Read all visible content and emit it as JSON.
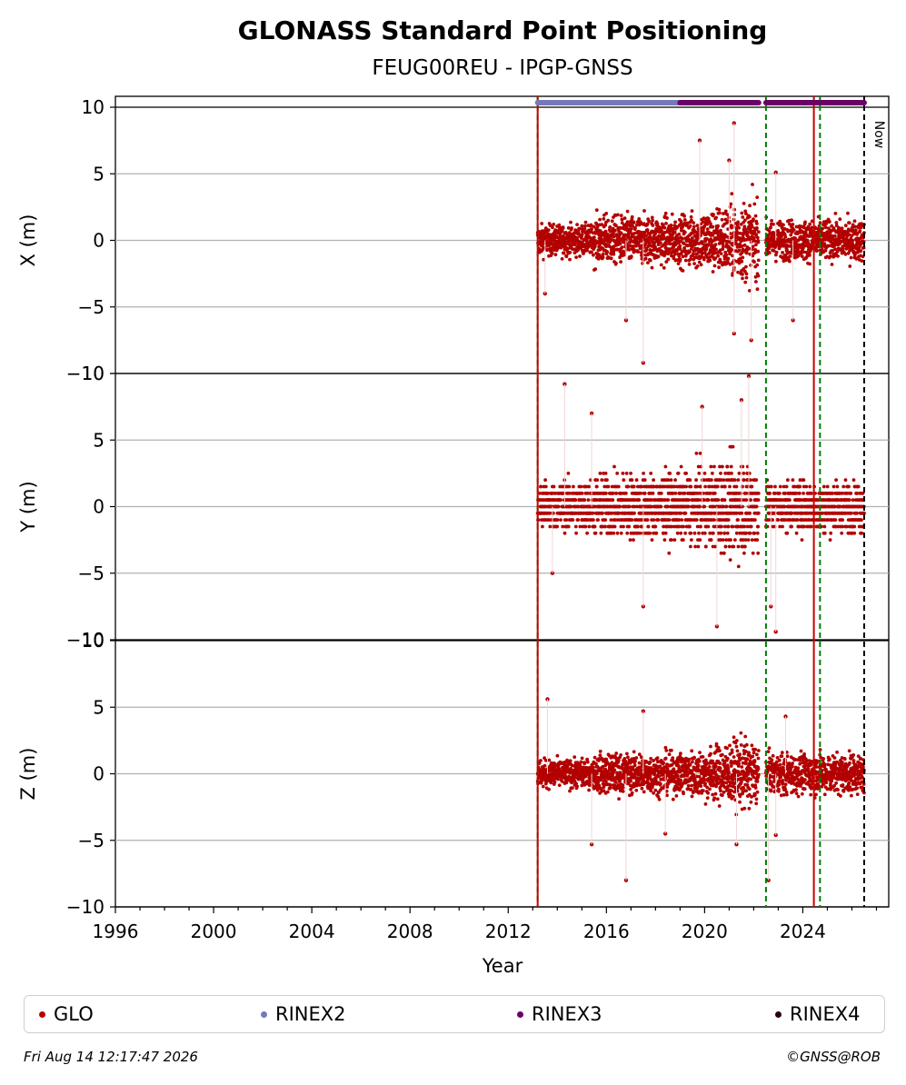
{
  "chart_data": {
    "type": "scatter",
    "title": "GLONASS Standard Point Positioning",
    "subtitle": "FEUG00REU - IPGP-GNSS",
    "xlabel": "Year",
    "xlim": [
      1996.0,
      2027.5
    ],
    "x_ticks": [
      1996,
      2000,
      2004,
      2008,
      2012,
      2016,
      2020,
      2024
    ],
    "grid": "horizontal",
    "panels": [
      {
        "ylabel": "X (m)",
        "ylim": [
          -10,
          10
        ],
        "yticks": [
          -10,
          -5,
          0,
          5,
          10
        ],
        "spread_early": 1.0,
        "spread_mid": 1.6,
        "spread_peak": 2.6,
        "spread_late": 1.3,
        "outliers": [
          [
            2013.5,
            -4.0
          ],
          [
            2016.8,
            -6.0
          ],
          [
            2017.5,
            -9.2
          ],
          [
            2019.8,
            7.5
          ],
          [
            2021.0,
            6.0
          ],
          [
            2021.2,
            8.8
          ],
          [
            2022.9,
            5.1
          ],
          [
            2023.6,
            -6.0
          ],
          [
            2021.9,
            -7.5
          ],
          [
            2021.2,
            -7.0
          ]
        ]
      },
      {
        "ylabel": "Y (m)",
        "ylim": [
          -10,
          10
        ],
        "yticks": [
          -10,
          -5,
          0,
          5,
          10
        ],
        "spread_early": 1.6,
        "spread_mid": 2.1,
        "spread_peak": 3.2,
        "spread_late": 1.6,
        "outliers": [
          [
            2014.3,
            9.2
          ],
          [
            2015.4,
            7.0
          ],
          [
            2013.8,
            -5.0
          ],
          [
            2017.5,
            -7.5
          ],
          [
            2020.5,
            -9.0
          ],
          [
            2021.5,
            8.0
          ],
          [
            2021.8,
            9.8
          ],
          [
            2022.9,
            -9.4
          ],
          [
            2022.7,
            -7.5
          ],
          [
            2019.9,
            7.5
          ]
        ]
      },
      {
        "ylabel": "Z (m)",
        "ylim": [
          -10,
          10
        ],
        "yticks": [
          -10,
          -5,
          0,
          5,
          10
        ],
        "spread_early": 0.9,
        "spread_mid": 1.3,
        "spread_peak": 2.2,
        "spread_late": 1.3,
        "outliers": [
          [
            2013.6,
            5.6
          ],
          [
            2015.4,
            -5.3
          ],
          [
            2016.8,
            -8.0
          ],
          [
            2017.5,
            4.7
          ],
          [
            2018.4,
            -4.5
          ],
          [
            2021.3,
            -5.3
          ],
          [
            2022.6,
            -8.0
          ],
          [
            2022.9,
            -4.6
          ],
          [
            2023.3,
            4.3
          ]
        ]
      }
    ],
    "data_segments": [
      [
        2013.2,
        2022.2
      ],
      [
        2022.5,
        2026.5
      ]
    ],
    "vertical_lines": [
      {
        "x": 2013.2,
        "color": "#008000",
        "style": "dashed"
      },
      {
        "x": 2013.2,
        "color": "#cc0000",
        "style": "solid"
      },
      {
        "x": 2022.5,
        "color": "#008000",
        "style": "dashed"
      },
      {
        "x": 2024.45,
        "color": "#cc0000",
        "style": "solid"
      },
      {
        "x": 2024.7,
        "color": "#008000",
        "style": "dashed"
      },
      {
        "x": 2026.5,
        "color": "#000000",
        "style": "dashed"
      }
    ],
    "now_marker": {
      "x": 2026.5,
      "label": "Now"
    },
    "rinex_bars": [
      {
        "from": 2013.2,
        "to": 2019.0,
        "format": "RINEX2",
        "color": "#7777bb"
      },
      {
        "from": 2019.0,
        "to": 2022.2,
        "format": "RINEX3",
        "color": "#6b0066"
      },
      {
        "from": 2022.5,
        "to": 2026.5,
        "format": "RINEX3",
        "color": "#6b0066"
      }
    ],
    "series": [
      {
        "name": "GLO",
        "color": "#b30000"
      },
      {
        "name": "RINEX2",
        "color": "#7777bb"
      },
      {
        "name": "RINEX3",
        "color": "#6b0066"
      },
      {
        "name": "RINEX4",
        "color": "#2a0010"
      }
    ]
  },
  "footer": {
    "timestamp": "Fri Aug 14 12:17:47 2026",
    "copyright": "©GNSS@ROB"
  }
}
